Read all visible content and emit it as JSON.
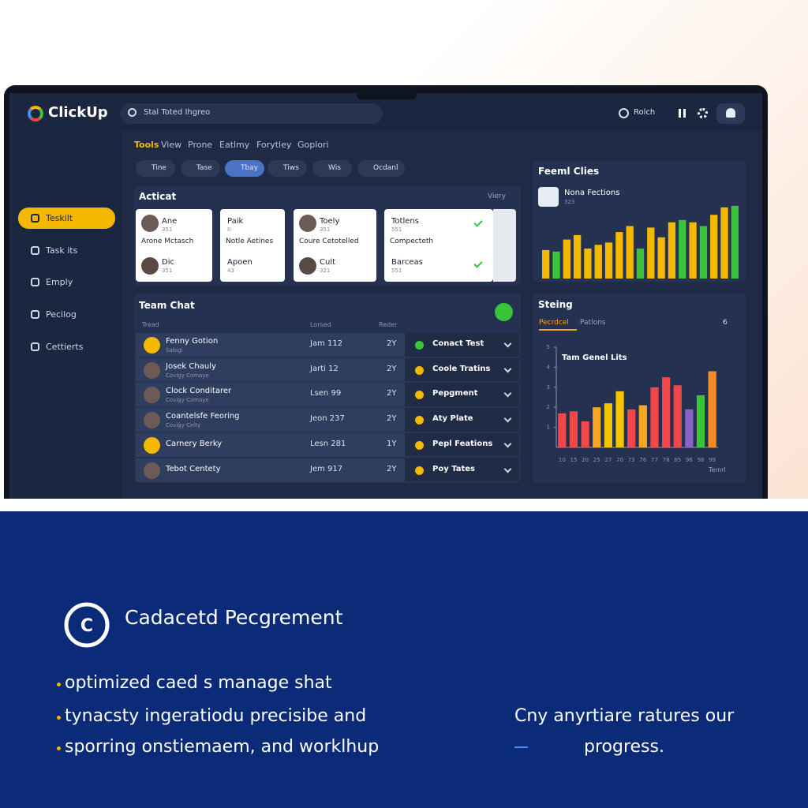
{
  "header": {
    "logo": "ClickUp",
    "search": "Stal Toted Ihgreo",
    "user": "Rolch"
  },
  "tabs": [
    "Tools",
    "View",
    "Prone",
    "Eatlmy",
    "Forytley",
    "Goplori"
  ],
  "filters": [
    "Tine",
    "Tase",
    "Tbay",
    "Tiws",
    "Wis",
    "Ocdanl"
  ],
  "sidebar": [
    "Teskilt",
    "Task its",
    "Emply",
    "Pecilog",
    "Cettierts"
  ],
  "activity": {
    "title": "Acticat",
    "more": "Viery",
    "cards": [
      {
        "top": "Ane",
        "top_sub": "351",
        "middle": "Arone Mctasch",
        "bottom": "Dic",
        "bottom_sub": "351"
      },
      {
        "top": "Paik",
        "top_sub": "II",
        "middle": "Notle Aetines",
        "bottom": "Apoen",
        "bottom_sub": "43"
      },
      {
        "top": "Toely",
        "top_sub": "351",
        "middle": "Coure Cetotelled",
        "bottom": "Cult",
        "bottom_sub": "321"
      },
      {
        "top": "Totlens",
        "top_sub": "551",
        "middle": "Compecteth",
        "bottom": "Barceas",
        "bottom_sub": "551"
      }
    ]
  },
  "team_chat": {
    "title": "Team Chat",
    "headers": [
      "Tread",
      "Lorsed",
      "Reder"
    ],
    "rows": [
      {
        "name": "Fenny Gotion",
        "sub": "Sabigi",
        "date": "Jam 112",
        "count": "2Y"
      },
      {
        "name": "Josek Chauly",
        "sub": "Covigy Comaye",
        "date": "Jarti 12",
        "count": "2Y"
      },
      {
        "name": "Clock Conditarer",
        "sub": "Covigy Comaye",
        "date": "Lsen 99",
        "count": "2Y"
      },
      {
        "name": "Coantelsfe Feoring",
        "sub": "Covigy Celty",
        "date": "Jeon 237",
        "count": "2Y"
      },
      {
        "name": "Carnery Berky",
        "sub": "",
        "date": "Lesn 281",
        "count": "1Y"
      },
      {
        "name": "Tebot Centety",
        "sub": "",
        "date": "Jem 917",
        "count": "2Y"
      }
    ],
    "statuses": [
      "Conact Test",
      "Coole Tratins",
      "Pepgment",
      "Aty Plate",
      "Pepl Feations",
      "Poy Tates"
    ]
  },
  "charts": [
    {
      "type": "bar",
      "title": "Feeml Clies",
      "legend": "Nona Fections",
      "legend_sub": "323",
      "ylim": [
        0,
        100
      ],
      "values": [
        38,
        36,
        52,
        58,
        40,
        45,
        48,
        62,
        70,
        40,
        68,
        55,
        75,
        78,
        75,
        70,
        85,
        95,
        97
      ],
      "colors": [
        "#f5b800",
        "#3ac43a",
        "#f5b800",
        "#f5b800",
        "#f5b800",
        "#f5b800",
        "#f5b800",
        "#f5b800",
        "#f5b800",
        "#3ac43a",
        "#f5b800",
        "#f5b800",
        "#f5b800",
        "#3ac43a",
        "#f5b800",
        "#3ac43a",
        "#f5b800",
        "#f5b800",
        "#3ac43a"
      ]
    },
    {
      "type": "bar",
      "title": "Steing",
      "tabs": [
        "Pecrdcel",
        "Patlons"
      ],
      "count": "6",
      "subtitle": "Tam Genel Lits",
      "xlabel": "Temrl",
      "ylim": [
        0,
        5
      ],
      "yticks": [
        1,
        2,
        3,
        4,
        5
      ],
      "categories": [
        "10",
        "15",
        "20",
        "25",
        "27",
        "70",
        "73",
        "76",
        "77",
        "78",
        "85",
        "96",
        "98",
        "99"
      ],
      "values": [
        1.7,
        1.8,
        1.3,
        2.0,
        2.2,
        2.8,
        1.9,
        2.1,
        3.0,
        3.5,
        3.1,
        1.9,
        2.6,
        3.8
      ],
      "colors": [
        "#f04848",
        "#f04848",
        "#f04848",
        "#f5a623",
        "#f5c400",
        "#f5c400",
        "#f04848",
        "#f5a623",
        "#f04848",
        "#f04848",
        "#f04848",
        "#8a63c8",
        "#3ac43a",
        "#f58a23"
      ]
    }
  ],
  "promo": {
    "heading": "Cadacetd Pecgrement",
    "icon": "C",
    "bullets": [
      "optimized caed s manage shat",
      "tynacsty ingeratiodu precisibe and",
      "sporring onstiemaem, and worklhup"
    ],
    "right": [
      "Cny anyrtiare ratures our",
      "progress."
    ]
  }
}
